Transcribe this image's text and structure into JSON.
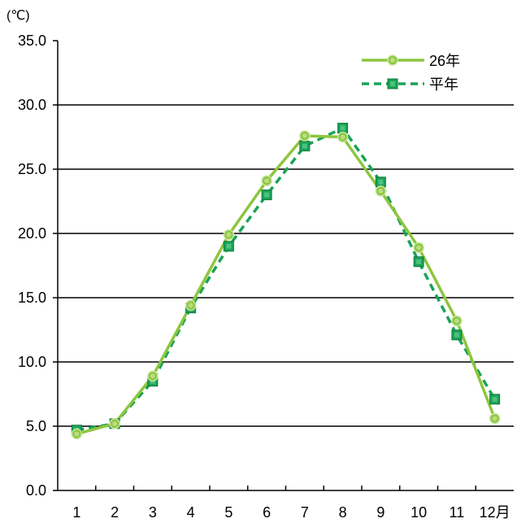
{
  "chart_data": {
    "type": "line",
    "unit_label": "(℃)",
    "categories": [
      "1",
      "2",
      "3",
      "4",
      "5",
      "6",
      "7",
      "8",
      "9",
      "10",
      "11",
      "12月"
    ],
    "yticks": [
      "0.0",
      "5.0",
      "10.0",
      "15.0",
      "20.0",
      "25.0",
      "30.0",
      "35.0"
    ],
    "ylim": [
      0,
      35
    ],
    "grid": true,
    "legend_position": "top-right",
    "series": [
      {
        "name": "26年",
        "color": "#8dc63f",
        "line_style": "solid",
        "marker": "circle",
        "values": [
          4.4,
          5.2,
          8.9,
          14.4,
          19.9,
          24.1,
          27.6,
          27.5,
          23.3,
          18.9,
          13.2,
          5.6
        ]
      },
      {
        "name": "平年",
        "color": "#1aa356",
        "line_style": "dashed",
        "marker": "square",
        "values": [
          4.7,
          5.2,
          8.5,
          14.2,
          19.0,
          23.0,
          26.8,
          28.2,
          24.0,
          17.8,
          12.1,
          7.1
        ]
      }
    ]
  }
}
